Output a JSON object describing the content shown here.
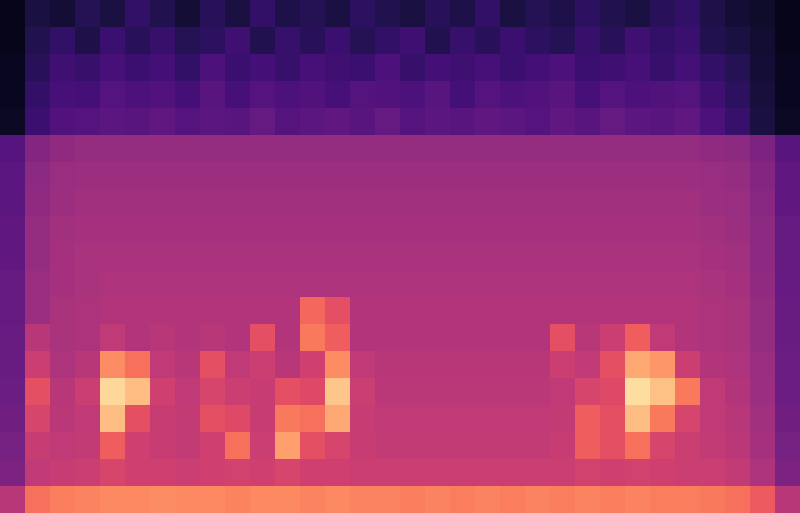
{
  "chart_data": {
    "type": "heatmap",
    "color": "magma",
    "color_range": [
      0,
      1
    ],
    "tick_labels": false,
    "cells": [
      [
        0.05,
        0.12,
        0.1,
        0.15,
        0.12,
        0.18,
        0.14,
        0.1,
        0.16,
        0.12,
        0.18,
        0.13,
        0.15,
        0.12,
        0.17,
        0.14,
        0.12,
        0.16,
        0.13,
        0.18,
        0.12,
        0.15,
        0.13,
        0.17,
        0.14,
        0.12,
        0.16,
        0.18,
        0.13,
        0.1,
        0.08,
        0.05
      ],
      [
        0.05,
        0.14,
        0.18,
        0.13,
        0.2,
        0.16,
        0.19,
        0.15,
        0.17,
        0.21,
        0.14,
        0.19,
        0.16,
        0.2,
        0.15,
        0.18,
        0.21,
        0.14,
        0.19,
        0.16,
        0.2,
        0.17,
        0.15,
        0.19,
        0.16,
        0.21,
        0.18,
        0.2,
        0.14,
        0.12,
        0.09,
        0.05
      ],
      [
        0.06,
        0.16,
        0.21,
        0.19,
        0.23,
        0.2,
        0.22,
        0.18,
        0.24,
        0.2,
        0.22,
        0.19,
        0.23,
        0.21,
        0.2,
        0.24,
        0.19,
        0.22,
        0.21,
        0.23,
        0.2,
        0.22,
        0.24,
        0.2,
        0.21,
        0.23,
        0.19,
        0.22,
        0.18,
        0.15,
        0.1,
        0.06
      ],
      [
        0.06,
        0.18,
        0.23,
        0.22,
        0.26,
        0.24,
        0.25,
        0.22,
        0.27,
        0.23,
        0.26,
        0.24,
        0.25,
        0.23,
        0.26,
        0.25,
        0.24,
        0.27,
        0.22,
        0.26,
        0.24,
        0.25,
        0.27,
        0.23,
        0.26,
        0.24,
        0.25,
        0.26,
        0.21,
        0.17,
        0.11,
        0.06
      ],
      [
        0.07,
        0.2,
        0.25,
        0.26,
        0.28,
        0.27,
        0.29,
        0.26,
        0.28,
        0.27,
        0.3,
        0.26,
        0.28,
        0.29,
        0.27,
        0.3,
        0.26,
        0.28,
        0.27,
        0.29,
        0.28,
        0.26,
        0.29,
        0.27,
        0.3,
        0.28,
        0.27,
        0.29,
        0.24,
        0.19,
        0.12,
        0.07
      ],
      [
        0.26,
        0.38,
        0.41,
        0.42,
        0.42,
        0.42,
        0.42,
        0.42,
        0.42,
        0.42,
        0.42,
        0.42,
        0.42,
        0.42,
        0.42,
        0.42,
        0.42,
        0.42,
        0.42,
        0.42,
        0.42,
        0.42,
        0.42,
        0.42,
        0.42,
        0.42,
        0.42,
        0.42,
        0.41,
        0.4,
        0.36,
        0.27
      ],
      [
        0.28,
        0.4,
        0.43,
        0.44,
        0.44,
        0.44,
        0.44,
        0.44,
        0.44,
        0.44,
        0.44,
        0.44,
        0.44,
        0.44,
        0.44,
        0.44,
        0.44,
        0.44,
        0.44,
        0.44,
        0.44,
        0.44,
        0.44,
        0.44,
        0.44,
        0.44,
        0.44,
        0.44,
        0.43,
        0.42,
        0.38,
        0.29
      ],
      [
        0.28,
        0.41,
        0.44,
        0.45,
        0.45,
        0.45,
        0.45,
        0.45,
        0.45,
        0.45,
        0.45,
        0.45,
        0.45,
        0.45,
        0.45,
        0.45,
        0.45,
        0.45,
        0.45,
        0.45,
        0.45,
        0.45,
        0.45,
        0.45,
        0.45,
        0.45,
        0.45,
        0.45,
        0.44,
        0.43,
        0.39,
        0.29
      ],
      [
        0.29,
        0.42,
        0.45,
        0.46,
        0.46,
        0.46,
        0.46,
        0.46,
        0.46,
        0.46,
        0.46,
        0.46,
        0.46,
        0.46,
        0.46,
        0.46,
        0.46,
        0.46,
        0.46,
        0.46,
        0.46,
        0.46,
        0.46,
        0.46,
        0.46,
        0.46,
        0.46,
        0.46,
        0.45,
        0.44,
        0.4,
        0.3
      ],
      [
        0.29,
        0.42,
        0.46,
        0.47,
        0.47,
        0.47,
        0.47,
        0.47,
        0.47,
        0.47,
        0.47,
        0.47,
        0.47,
        0.47,
        0.47,
        0.47,
        0.47,
        0.47,
        0.47,
        0.47,
        0.47,
        0.47,
        0.47,
        0.47,
        0.47,
        0.47,
        0.47,
        0.47,
        0.46,
        0.45,
        0.4,
        0.3
      ],
      [
        0.3,
        0.43,
        0.46,
        0.47,
        0.48,
        0.48,
        0.48,
        0.48,
        0.48,
        0.48,
        0.48,
        0.48,
        0.48,
        0.48,
        0.48,
        0.48,
        0.48,
        0.48,
        0.48,
        0.48,
        0.48,
        0.48,
        0.48,
        0.48,
        0.48,
        0.48,
        0.48,
        0.48,
        0.47,
        0.46,
        0.41,
        0.3
      ],
      [
        0.3,
        0.43,
        0.47,
        0.48,
        0.49,
        0.49,
        0.49,
        0.49,
        0.49,
        0.49,
        0.49,
        0.49,
        0.68,
        0.62,
        0.49,
        0.49,
        0.49,
        0.49,
        0.49,
        0.49,
        0.49,
        0.49,
        0.49,
        0.49,
        0.49,
        0.49,
        0.49,
        0.49,
        0.48,
        0.47,
        0.42,
        0.31
      ],
      [
        0.31,
        0.5,
        0.47,
        0.48,
        0.52,
        0.49,
        0.5,
        0.49,
        0.5,
        0.49,
        0.62,
        0.49,
        0.72,
        0.66,
        0.49,
        0.49,
        0.49,
        0.49,
        0.49,
        0.49,
        0.49,
        0.49,
        0.62,
        0.5,
        0.55,
        0.66,
        0.52,
        0.49,
        0.48,
        0.47,
        0.42,
        0.31
      ],
      [
        0.31,
        0.55,
        0.48,
        0.5,
        0.76,
        0.7,
        0.52,
        0.5,
        0.62,
        0.52,
        0.55,
        0.5,
        0.56,
        0.76,
        0.52,
        0.5,
        0.5,
        0.5,
        0.5,
        0.5,
        0.5,
        0.5,
        0.55,
        0.52,
        0.62,
        0.82,
        0.78,
        0.55,
        0.49,
        0.48,
        0.43,
        0.32
      ],
      [
        0.32,
        0.62,
        0.5,
        0.55,
        0.92,
        0.86,
        0.56,
        0.52,
        0.58,
        0.55,
        0.54,
        0.62,
        0.6,
        0.88,
        0.55,
        0.51,
        0.51,
        0.51,
        0.51,
        0.51,
        0.51,
        0.51,
        0.52,
        0.58,
        0.6,
        0.93,
        0.87,
        0.72,
        0.52,
        0.49,
        0.44,
        0.32
      ],
      [
        0.33,
        0.58,
        0.51,
        0.52,
        0.86,
        0.62,
        0.54,
        0.53,
        0.62,
        0.6,
        0.54,
        0.72,
        0.7,
        0.82,
        0.54,
        0.52,
        0.52,
        0.52,
        0.52,
        0.52,
        0.52,
        0.52,
        0.53,
        0.66,
        0.62,
        0.86,
        0.72,
        0.58,
        0.52,
        0.5,
        0.45,
        0.33
      ],
      [
        0.34,
        0.54,
        0.52,
        0.53,
        0.66,
        0.56,
        0.54,
        0.53,
        0.56,
        0.7,
        0.55,
        0.8,
        0.62,
        0.58,
        0.54,
        0.53,
        0.53,
        0.53,
        0.53,
        0.53,
        0.53,
        0.53,
        0.54,
        0.66,
        0.62,
        0.7,
        0.58,
        0.55,
        0.53,
        0.51,
        0.46,
        0.34
      ],
      [
        0.36,
        0.52,
        0.54,
        0.55,
        0.58,
        0.56,
        0.56,
        0.55,
        0.56,
        0.57,
        0.56,
        0.58,
        0.56,
        0.56,
        0.55,
        0.55,
        0.55,
        0.55,
        0.55,
        0.55,
        0.55,
        0.55,
        0.55,
        0.57,
        0.56,
        0.57,
        0.56,
        0.55,
        0.55,
        0.53,
        0.48,
        0.36
      ],
      [
        0.5,
        0.7,
        0.73,
        0.74,
        0.75,
        0.75,
        0.76,
        0.75,
        0.75,
        0.74,
        0.75,
        0.75,
        0.74,
        0.75,
        0.74,
        0.74,
        0.73,
        0.74,
        0.73,
        0.74,
        0.73,
        0.74,
        0.73,
        0.74,
        0.73,
        0.74,
        0.73,
        0.73,
        0.72,
        0.7,
        0.65,
        0.5
      ]
    ]
  }
}
